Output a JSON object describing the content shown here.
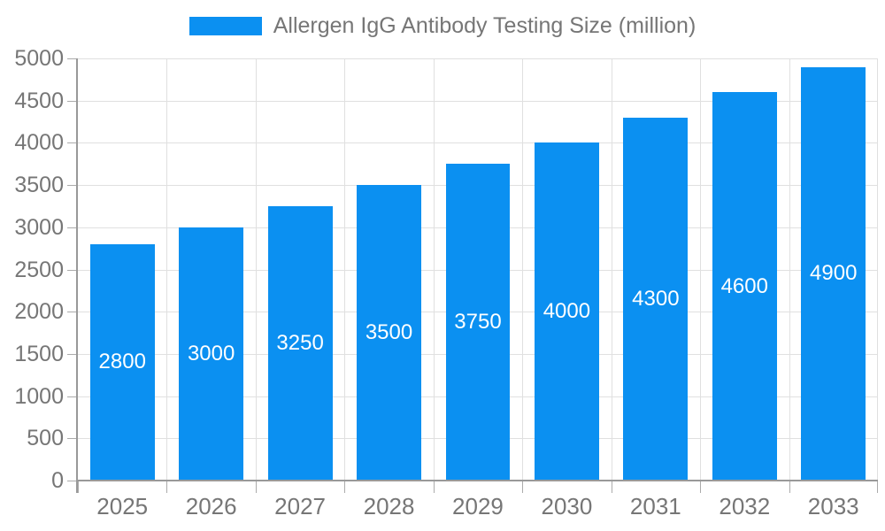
{
  "legend": {
    "label": "Allergen IgG Antibody Testing Size (million)"
  },
  "colors": {
    "bar": "#0b90f1",
    "axis": "#999999",
    "grid": "#e0e0e0",
    "tick": "#ababab",
    "text": "#767676",
    "value_label": "#ffffff",
    "background": "#ffffff"
  },
  "chart_data": {
    "type": "bar",
    "title": "Allergen IgG Antibody Testing Size (million)",
    "categories": [
      "2025",
      "2026",
      "2027",
      "2028",
      "2029",
      "2030",
      "2031",
      "2032",
      "2033"
    ],
    "values": [
      2800,
      3000,
      3250,
      3500,
      3750,
      4000,
      4300,
      4600,
      4900
    ],
    "xlabel": "",
    "ylabel": "",
    "ylim": [
      0,
      5000
    ],
    "ytick_step": 500,
    "grid": true,
    "legend_position": "top",
    "bar_labels": "inside-center"
  }
}
